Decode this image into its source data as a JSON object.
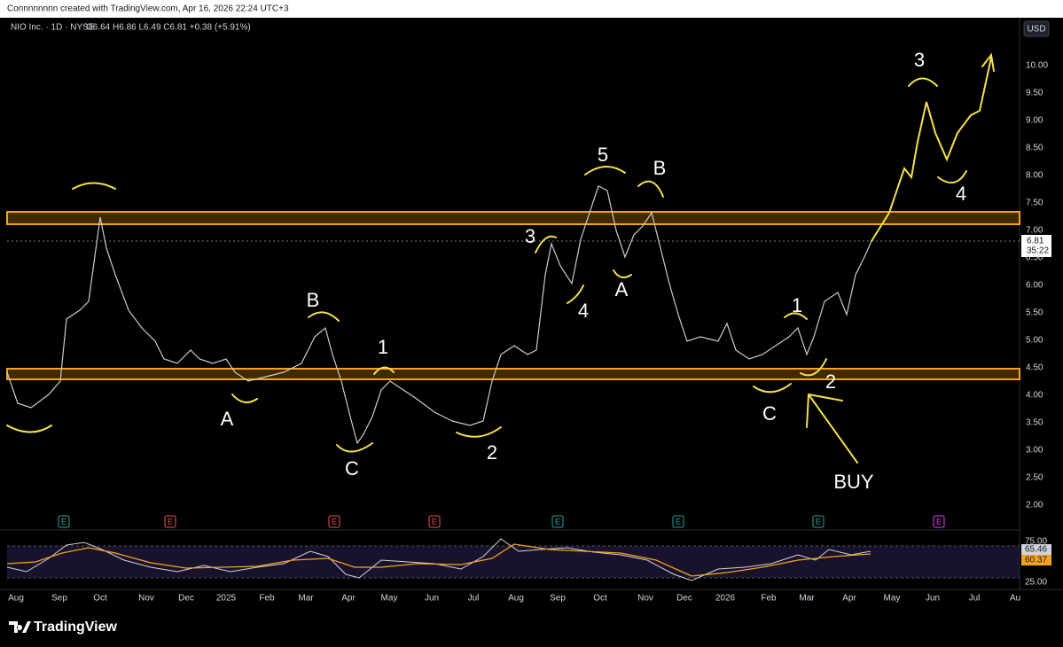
{
  "header": {
    "credit": "Connnnnnnn created with TradingView.com, Apr 16, 2026 22:24 UTC+3",
    "symbol": "NIO Inc. · 1D · NYSE",
    "ohlc": "O6.64 H6.86 L6.49 C6.81 +0.38 (+5.91%)"
  },
  "price_axis": {
    "currency": "USD",
    "labels": [
      "10.00",
      "9.50",
      "9.00",
      "8.50",
      "8.00",
      "7.50",
      "7.00",
      "6.50",
      "6.00",
      "5.50",
      "5.00",
      "4.50",
      "4.00",
      "3.50",
      "3.00",
      "2.50",
      "2.00"
    ],
    "last_price": "6.81",
    "countdown": "35:22"
  },
  "rsi_axis": {
    "upper": "75.00",
    "lower": "25.00",
    "rsi": "65.46",
    "rsi_ma": "60.37"
  },
  "time_axis": [
    "Aug",
    "Sep",
    "Oct",
    "Nov",
    "Dec",
    "2025",
    "Feb",
    "Mar",
    "Apr",
    "May",
    "Jun",
    "Jul",
    "Aug",
    "Sep",
    "Oct",
    "Nov",
    "Dec",
    "2026",
    "Feb",
    "Mar",
    "Apr",
    "May",
    "Jun",
    "Jul",
    "Au"
  ],
  "annotations": [
    "5",
    "B",
    "3",
    "4",
    "A",
    "B",
    "1",
    "A",
    "C",
    "2",
    "1",
    "2",
    "C",
    "BUY",
    "3",
    "4"
  ],
  "earnings": [
    "E",
    "E",
    "E",
    "E",
    "E",
    "E",
    "E",
    "E"
  ],
  "footer": "TradingView"
}
